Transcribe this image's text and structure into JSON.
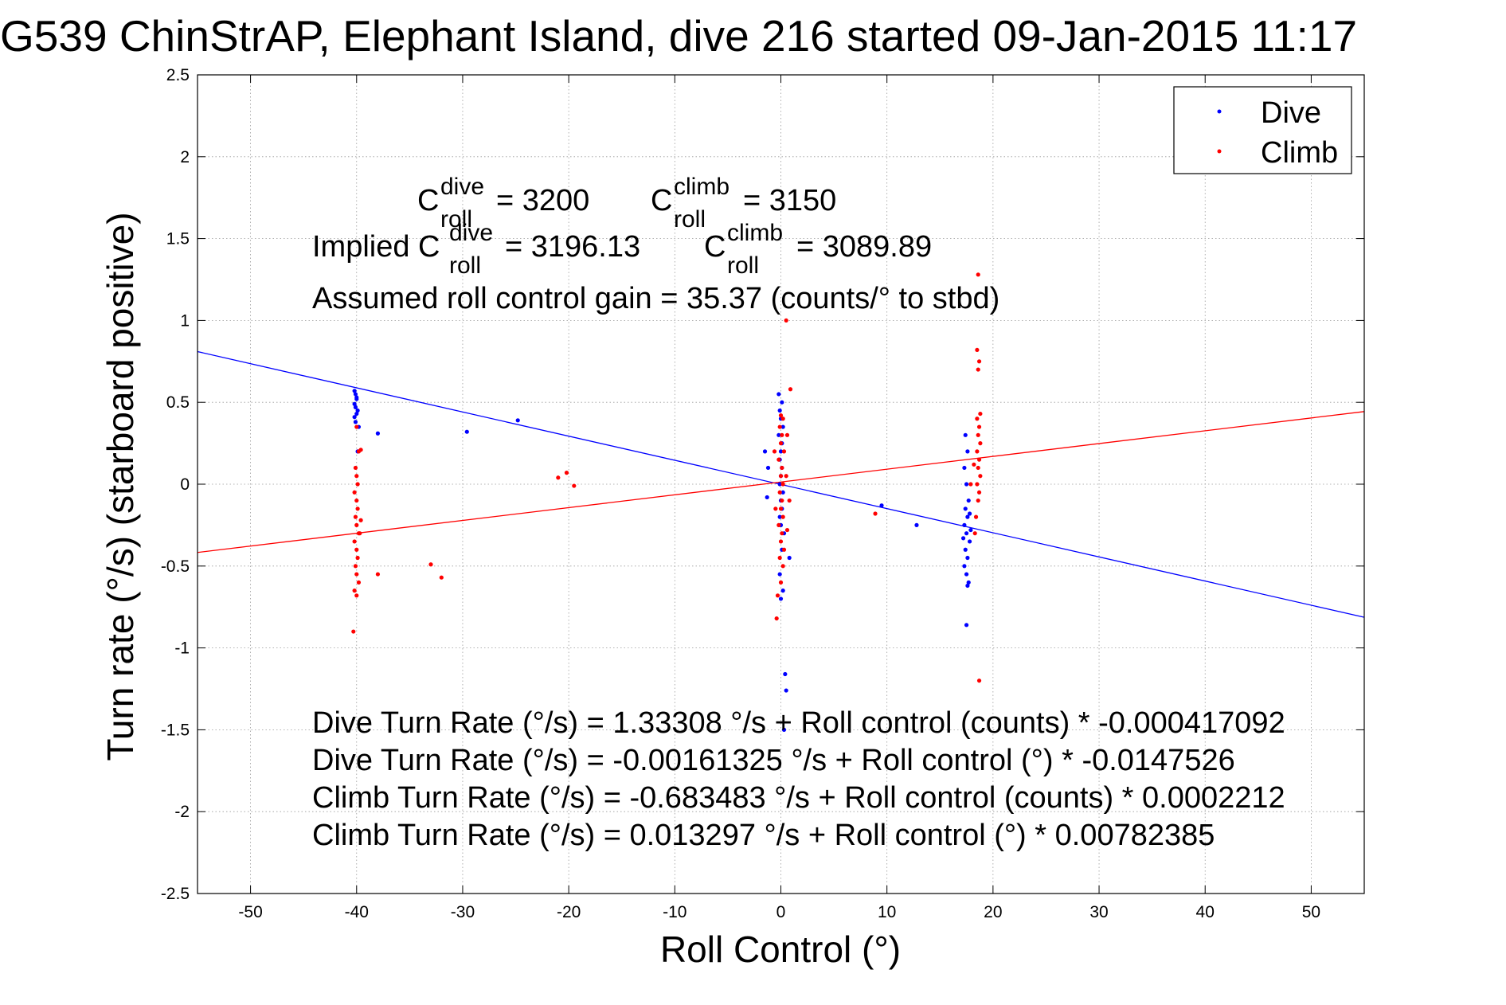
{
  "chart_data": {
    "type": "scatter",
    "title": "G539 ChinStrAP, Elephant Island, dive 216 started 09-Jan-2015 11:17",
    "xlabel": "Roll Control (°)",
    "ylabel": "Turn rate (°/s)  (starboard positive)",
    "xlim": [
      -55,
      55
    ],
    "ylim": [
      -2.5,
      2.5
    ],
    "xticks": [
      -50,
      -40,
      -30,
      -20,
      -10,
      0,
      10,
      20,
      30,
      40,
      50
    ],
    "yticks": [
      -2.5,
      -2,
      -1.5,
      -1,
      -0.5,
      0,
      0.5,
      1,
      1.5,
      2,
      2.5
    ],
    "grid": true,
    "legend_position": "top-right",
    "colors": {
      "dive": "#0000ff",
      "climb": "#ff0000"
    },
    "series": [
      {
        "name": "Dive",
        "color": "#0000ff",
        "points": [
          [
            -40.2,
            0.57
          ],
          [
            -40.1,
            0.55
          ],
          [
            -40.0,
            0.52
          ],
          [
            -40.2,
            0.49
          ],
          [
            -40.1,
            0.47
          ],
          [
            -39.9,
            0.45
          ],
          [
            -40.0,
            0.43
          ],
          [
            -40.2,
            0.41
          ],
          [
            -40.1,
            0.38
          ],
          [
            -39.8,
            0.35
          ],
          [
            -40.0,
            0.53
          ],
          [
            -39.9,
            0.2
          ],
          [
            -38.0,
            0.31
          ],
          [
            -29.6,
            0.32
          ],
          [
            -24.8,
            0.39
          ],
          [
            -0.2,
            0.55
          ],
          [
            0.1,
            0.5
          ],
          [
            -0.1,
            0.45
          ],
          [
            0.0,
            0.4
          ],
          [
            0.2,
            0.35
          ],
          [
            -0.2,
            0.3
          ],
          [
            0.1,
            0.25
          ],
          [
            0.0,
            0.2
          ],
          [
            -0.1,
            0.15
          ],
          [
            0.1,
            0.1
          ],
          [
            0.0,
            0.05
          ],
          [
            -0.1,
            0.0
          ],
          [
            0.2,
            -0.05
          ],
          [
            0.0,
            -0.1
          ],
          [
            0.1,
            -0.15
          ],
          [
            -0.1,
            -0.2
          ],
          [
            0.0,
            -0.25
          ],
          [
            0.3,
            -0.3
          ],
          [
            0.1,
            -0.4
          ],
          [
            0.8,
            -0.45
          ],
          [
            -0.1,
            -0.55
          ],
          [
            0.2,
            -0.65
          ],
          [
            0.0,
            -0.7
          ],
          [
            -1.5,
            0.2
          ],
          [
            -1.2,
            0.1
          ],
          [
            -1.3,
            -0.08
          ],
          [
            0.4,
            -1.16
          ],
          [
            0.5,
            -1.26
          ],
          [
            0.3,
            -1.5
          ],
          [
            9.5,
            -0.13
          ],
          [
            12.8,
            -0.25
          ],
          [
            17.4,
            0.3
          ],
          [
            17.6,
            0.2
          ],
          [
            17.3,
            0.1
          ],
          [
            17.5,
            0.0
          ],
          [
            17.7,
            -0.1
          ],
          [
            17.4,
            -0.15
          ],
          [
            17.6,
            -0.2
          ],
          [
            17.3,
            -0.25
          ],
          [
            17.5,
            -0.3
          ],
          [
            17.8,
            -0.35
          ],
          [
            17.4,
            -0.4
          ],
          [
            17.6,
            -0.45
          ],
          [
            17.3,
            -0.5
          ],
          [
            17.5,
            -0.55
          ],
          [
            17.7,
            -0.6
          ],
          [
            17.6,
            -0.62
          ],
          [
            17.5,
            -0.86
          ],
          [
            17.9,
            -0.28
          ],
          [
            17.2,
            -0.33
          ],
          [
            17.8,
            -0.18
          ]
        ]
      },
      {
        "name": "Climb",
        "color": "#ff0000",
        "points": [
          [
            -40.0,
            0.35
          ],
          [
            -39.8,
            0.2
          ],
          [
            -39.6,
            0.21
          ],
          [
            -40.1,
            0.1
          ],
          [
            -40.0,
            0.05
          ],
          [
            -39.9,
            0.0
          ],
          [
            -40.2,
            -0.05
          ],
          [
            -40.0,
            -0.1
          ],
          [
            -39.9,
            -0.15
          ],
          [
            -40.1,
            -0.2
          ],
          [
            -40.0,
            -0.25
          ],
          [
            -39.8,
            -0.3
          ],
          [
            -40.2,
            -0.35
          ],
          [
            -40.0,
            -0.4
          ],
          [
            -39.9,
            -0.45
          ],
          [
            -40.1,
            -0.5
          ],
          [
            -40.0,
            -0.55
          ],
          [
            -39.8,
            -0.6
          ],
          [
            -40.2,
            -0.65
          ],
          [
            -40.0,
            -0.68
          ],
          [
            -40.3,
            -0.9
          ],
          [
            -39.7,
            -0.3
          ],
          [
            -39.6,
            -0.22
          ],
          [
            -38.0,
            -0.55
          ],
          [
            -33.0,
            -0.49
          ],
          [
            -32.0,
            -0.57
          ],
          [
            -21.0,
            0.04
          ],
          [
            -20.2,
            0.07
          ],
          [
            -19.5,
            -0.01
          ],
          [
            0.0,
            0.42
          ],
          [
            0.2,
            0.4
          ],
          [
            -0.1,
            0.35
          ],
          [
            0.1,
            0.3
          ],
          [
            0.0,
            0.25
          ],
          [
            0.3,
            0.2
          ],
          [
            -0.2,
            0.15
          ],
          [
            0.1,
            0.1
          ],
          [
            0.0,
            0.05
          ],
          [
            0.2,
            0.0
          ],
          [
            -0.1,
            -0.05
          ],
          [
            0.1,
            -0.1
          ],
          [
            0.0,
            -0.15
          ],
          [
            0.2,
            -0.2
          ],
          [
            -0.2,
            -0.25
          ],
          [
            0.1,
            -0.3
          ],
          [
            0.0,
            -0.35
          ],
          [
            0.3,
            -0.4
          ],
          [
            -0.1,
            -0.45
          ],
          [
            0.2,
            -0.5
          ],
          [
            0.0,
            -0.6
          ],
          [
            -0.3,
            -0.68
          ],
          [
            -0.4,
            -0.82
          ],
          [
            0.5,
            1.0
          ],
          [
            0.9,
            0.58
          ],
          [
            0.6,
            0.3
          ],
          [
            0.8,
            -0.1
          ],
          [
            -0.6,
            0.2
          ],
          [
            0.5,
            0.05
          ],
          [
            -0.5,
            -0.15
          ],
          [
            0.6,
            -0.28
          ],
          [
            8.9,
            -0.18
          ],
          [
            18.6,
            1.28
          ],
          [
            18.5,
            0.82
          ],
          [
            18.7,
            0.75
          ],
          [
            18.6,
            0.7
          ],
          [
            18.8,
            0.43
          ],
          [
            18.5,
            0.4
          ],
          [
            18.7,
            0.35
          ],
          [
            18.6,
            0.3
          ],
          [
            18.8,
            0.25
          ],
          [
            18.5,
            0.2
          ],
          [
            18.7,
            0.15
          ],
          [
            18.6,
            0.1
          ],
          [
            18.8,
            0.05
          ],
          [
            18.5,
            0.0
          ],
          [
            18.7,
            -0.05
          ],
          [
            18.6,
            -0.1
          ],
          [
            18.4,
            -0.2
          ],
          [
            18.3,
            -0.3
          ],
          [
            18.7,
            -1.2
          ],
          [
            17.9,
            0.0
          ],
          [
            18.2,
            0.12
          ]
        ]
      }
    ],
    "fit_lines": [
      {
        "series": "Dive",
        "color": "#0000ff",
        "intercept": -0.00161325,
        "slope": -0.0147526
      },
      {
        "series": "Climb",
        "color": "#ff0000",
        "intercept": 0.013297,
        "slope": 0.00782385
      }
    ],
    "annotations": {
      "c_roll_line": {
        "c_dive_base": "C",
        "c_dive_sup": "dive",
        "c_dive_sub": "roll",
        "c_dive_value": "= 3200",
        "c_climb_base": "C",
        "c_climb_sup": "climb",
        "c_climb_sub": "roll",
        "c_climb_value": "= 3150"
      },
      "implied_line": {
        "prefix": "Implied C",
        "c_dive_sup": "dive",
        "c_dive_sub": "roll",
        "c_dive_value": "= 3196.13",
        "c_climb_base": "C",
        "c_climb_sup": "climb",
        "c_climb_sub": "roll",
        "c_climb_value": "= 3089.89"
      },
      "gain_line": "Assumed roll control gain = 35.37 (counts/° to stbd)",
      "equations": [
        "Dive Turn Rate (°/s) = 1.33308 °/s + Roll control (counts) * -0.000417092",
        "Dive Turn Rate (°/s) = -0.00161325 °/s + Roll control (°) * -0.0147526",
        "Climb Turn Rate (°/s) = -0.683483 °/s + Roll control (counts) * 0.0002212",
        "Climb Turn Rate (°/s) = 0.013297 °/s + Roll control (°) * 0.00782385"
      ]
    }
  }
}
